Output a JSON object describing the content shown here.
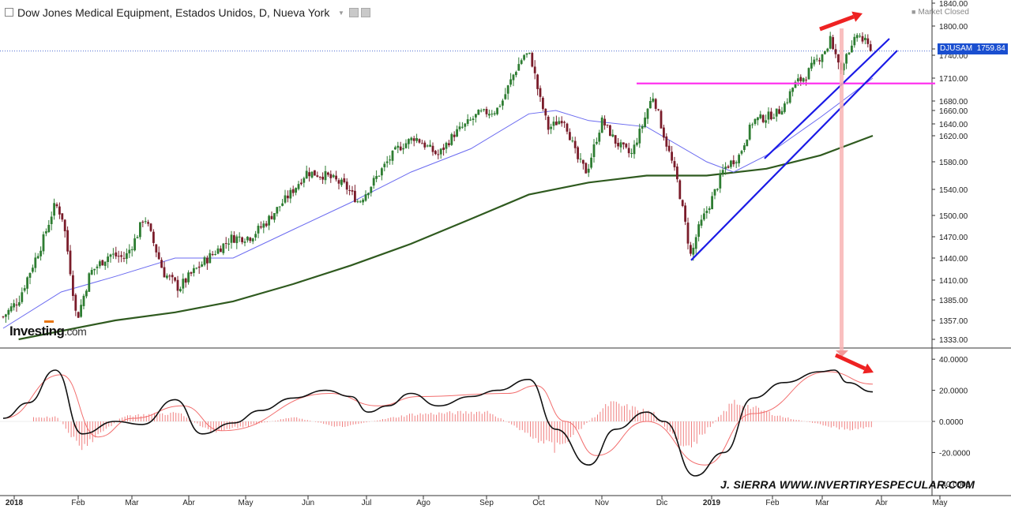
{
  "header": {
    "title": "Dow Jones Medical Equipment, Estados Unidos, D, Nueva York",
    "market_status": "Market Closed"
  },
  "price_tag": {
    "symbol": "DJUSAM",
    "value": "1759.84"
  },
  "logo": {
    "brand": "Investing",
    "suffix": ".com"
  },
  "credit": "J. SIERRA   WWW.INVERTIRYESPECULAR.COM",
  "colors": {
    "up_candle": "#2e7d32",
    "down_candle": "#7a1c2a",
    "sma50": "#6b6bf0",
    "sma200": "#2f5a1f",
    "macd": "#111111",
    "signal": "#f26d6d",
    "histogram": "#f08080",
    "trendline": "#1a1ae6",
    "resistance": "#ff33ee",
    "arrow": "#ee2222"
  },
  "chart_data": [
    {
      "type": "candlestick",
      "title": "Dow Jones Medical Equipment, Estados Unidos, D, Nueva York",
      "x_tick_labels": [
        "2018",
        "Feb",
        "Mar",
        "Abr",
        "May",
        "Jun",
        "Jul",
        "Ago",
        "Sep",
        "Oct",
        "Nov",
        "Dic",
        "2019",
        "Feb",
        "Mar",
        "Abr",
        "May"
      ],
      "y_tick_labels": [
        "1840.00",
        "1800.00",
        "1770.00",
        "1740.00",
        "1710.00",
        "1680.00",
        "1660.00",
        "1640.00",
        "1620.00",
        "1580.00",
        "1540.00",
        "1500.00",
        "1470.00",
        "1440.00",
        "1410.00",
        "1385.00",
        "1357.00",
        "1333.00"
      ],
      "y_tick_values": [
        1840,
        1800,
        1770,
        1740,
        1710,
        1680,
        1660,
        1640,
        1620,
        1580,
        1540,
        1500,
        1470,
        1440,
        1410,
        1385,
        1357,
        1333
      ],
      "last_price": 1759.84,
      "close_series": [
        {
          "date": "2018-01-02",
          "value": 1362
        },
        {
          "date": "2018-01-10",
          "value": 1385
        },
        {
          "date": "2018-01-22",
          "value": 1460
        },
        {
          "date": "2018-01-29",
          "value": 1518
        },
        {
          "date": "2018-02-02",
          "value": 1495
        },
        {
          "date": "2018-02-08",
          "value": 1380
        },
        {
          "date": "2018-02-09",
          "value": 1357
        },
        {
          "date": "2018-02-16",
          "value": 1420
        },
        {
          "date": "2018-02-26",
          "value": 1445
        },
        {
          "date": "2018-03-06",
          "value": 1440
        },
        {
          "date": "2018-03-12",
          "value": 1470
        },
        {
          "date": "2018-03-16",
          "value": 1500
        },
        {
          "date": "2018-03-26",
          "value": 1420
        },
        {
          "date": "2018-04-03",
          "value": 1400
        },
        {
          "date": "2018-04-10",
          "value": 1420
        },
        {
          "date": "2018-04-20",
          "value": 1445
        },
        {
          "date": "2018-04-30",
          "value": 1468
        },
        {
          "date": "2018-05-10",
          "value": 1470
        },
        {
          "date": "2018-05-18",
          "value": 1490
        },
        {
          "date": "2018-05-31",
          "value": 1535
        },
        {
          "date": "2018-06-08",
          "value": 1565
        },
        {
          "date": "2018-06-18",
          "value": 1560
        },
        {
          "date": "2018-06-28",
          "value": 1545
        },
        {
          "date": "2018-07-05",
          "value": 1520
        },
        {
          "date": "2018-07-16",
          "value": 1565
        },
        {
          "date": "2018-07-25",
          "value": 1600
        },
        {
          "date": "2018-08-03",
          "value": 1618
        },
        {
          "date": "2018-08-15",
          "value": 1590
        },
        {
          "date": "2018-08-24",
          "value": 1625
        },
        {
          "date": "2018-09-05",
          "value": 1655
        },
        {
          "date": "2018-09-14",
          "value": 1660
        },
        {
          "date": "2018-09-24",
          "value": 1720
        },
        {
          "date": "2018-10-01",
          "value": 1752
        },
        {
          "date": "2018-10-04",
          "value": 1715
        },
        {
          "date": "2018-10-11",
          "value": 1632
        },
        {
          "date": "2018-10-19",
          "value": 1650
        },
        {
          "date": "2018-10-26",
          "value": 1585
        },
        {
          "date": "2018-10-31",
          "value": 1565
        },
        {
          "date": "2018-11-08",
          "value": 1645
        },
        {
          "date": "2018-11-15",
          "value": 1610
        },
        {
          "date": "2018-11-23",
          "value": 1590
        },
        {
          "date": "2018-11-30",
          "value": 1648
        },
        {
          "date": "2018-12-04",
          "value": 1690
        },
        {
          "date": "2018-12-10",
          "value": 1620
        },
        {
          "date": "2018-12-17",
          "value": 1550
        },
        {
          "date": "2018-12-24",
          "value": 1440
        },
        {
          "date": "2018-12-27",
          "value": 1475
        },
        {
          "date": "2019-01-03",
          "value": 1520
        },
        {
          "date": "2019-01-10",
          "value": 1570
        },
        {
          "date": "2019-01-18",
          "value": 1590
        },
        {
          "date": "2019-01-25",
          "value": 1645
        },
        {
          "date": "2019-02-01",
          "value": 1650
        },
        {
          "date": "2019-02-08",
          "value": 1660
        },
        {
          "date": "2019-02-15",
          "value": 1700
        },
        {
          "date": "2019-02-22",
          "value": 1715
        },
        {
          "date": "2019-03-01",
          "value": 1740
        },
        {
          "date": "2019-03-06",
          "value": 1785
        },
        {
          "date": "2019-03-11",
          "value": 1715
        },
        {
          "date": "2019-03-14",
          "value": 1745
        },
        {
          "date": "2019-03-20",
          "value": 1790
        },
        {
          "date": "2019-03-25",
          "value": 1775
        },
        {
          "date": "2019-03-28",
          "value": 1760
        }
      ],
      "sma50": [
        {
          "date": "2018-01-02",
          "value": 1347
        },
        {
          "date": "2018-02-01",
          "value": 1395
        },
        {
          "date": "2018-03-01",
          "value": 1415
        },
        {
          "date": "2018-04-01",
          "value": 1440
        },
        {
          "date": "2018-05-01",
          "value": 1440
        },
        {
          "date": "2018-06-01",
          "value": 1480
        },
        {
          "date": "2018-07-01",
          "value": 1520
        },
        {
          "date": "2018-08-01",
          "value": 1565
        },
        {
          "date": "2018-09-01",
          "value": 1600
        },
        {
          "date": "2018-10-01",
          "value": 1655
        },
        {
          "date": "2018-10-15",
          "value": 1660
        },
        {
          "date": "2018-11-01",
          "value": 1645
        },
        {
          "date": "2018-12-01",
          "value": 1635
        },
        {
          "date": "2019-01-01",
          "value": 1580
        },
        {
          "date": "2019-01-15",
          "value": 1565
        },
        {
          "date": "2019-02-01",
          "value": 1590
        },
        {
          "date": "2019-03-01",
          "value": 1650
        },
        {
          "date": "2019-03-28",
          "value": 1710
        }
      ],
      "sma200": [
        {
          "date": "2018-01-10",
          "value": 1333
        },
        {
          "date": "2018-03-01",
          "value": 1357
        },
        {
          "date": "2018-04-01",
          "value": 1368
        },
        {
          "date": "2018-05-01",
          "value": 1383
        },
        {
          "date": "2018-06-01",
          "value": 1405
        },
        {
          "date": "2018-07-01",
          "value": 1430
        },
        {
          "date": "2018-08-01",
          "value": 1460
        },
        {
          "date": "2018-09-01",
          "value": 1495
        },
        {
          "date": "2018-10-01",
          "value": 1532
        },
        {
          "date": "2018-11-01",
          "value": 1550
        },
        {
          "date": "2018-12-01",
          "value": 1560
        },
        {
          "date": "2019-01-01",
          "value": 1560
        },
        {
          "date": "2019-02-01",
          "value": 1570
        },
        {
          "date": "2019-03-01",
          "value": 1590
        },
        {
          "date": "2019-03-28",
          "value": 1620
        }
      ],
      "drawings": {
        "resistance_level": 1703,
        "upper_trendline": [
          {
            "date": "2019-01-31",
            "value": 1585
          },
          {
            "date": "2019-03-31",
            "value": 1770
          }
        ],
        "lower_trendline": [
          {
            "date": "2018-12-24",
            "value": 1437
          },
          {
            "date": "2019-04-01",
            "value": 1755
          }
        ],
        "divergence_arrow_price": [
          {
            "date": "2019-03-01",
            "value": 1800
          },
          {
            "date": "2019-03-25",
            "value": 1833
          }
        ]
      }
    },
    {
      "type": "line",
      "y_tick_labels": [
        "40.0000",
        "20.0000",
        "0.0000",
        "-20.0000",
        "-40.0000"
      ],
      "y_tick_values": [
        40,
        20,
        0,
        -20,
        -40
      ],
      "macd": [
        {
          "date": "2018-01-02",
          "value": 2
        },
        {
          "date": "2018-01-15",
          "value": 12
        },
        {
          "date": "2018-01-29",
          "value": 33
        },
        {
          "date": "2018-02-12",
          "value": -8
        },
        {
          "date": "2018-03-01",
          "value": 0
        },
        {
          "date": "2018-03-15",
          "value": -2
        },
        {
          "date": "2018-04-01",
          "value": 14
        },
        {
          "date": "2018-04-15",
          "value": -8
        },
        {
          "date": "2018-05-01",
          "value": -1
        },
        {
          "date": "2018-05-15",
          "value": 7
        },
        {
          "date": "2018-06-01",
          "value": 15
        },
        {
          "date": "2018-06-18",
          "value": 20
        },
        {
          "date": "2018-07-01",
          "value": 16
        },
        {
          "date": "2018-07-10",
          "value": 6
        },
        {
          "date": "2018-07-20",
          "value": 10
        },
        {
          "date": "2018-08-01",
          "value": 18
        },
        {
          "date": "2018-08-15",
          "value": 10
        },
        {
          "date": "2018-09-01",
          "value": 16
        },
        {
          "date": "2018-09-15",
          "value": 20
        },
        {
          "date": "2018-10-01",
          "value": 27
        },
        {
          "date": "2018-10-15",
          "value": -5
        },
        {
          "date": "2018-11-01",
          "value": -28
        },
        {
          "date": "2018-11-15",
          "value": -5
        },
        {
          "date": "2018-12-01",
          "value": 6
        },
        {
          "date": "2018-12-10",
          "value": 0
        },
        {
          "date": "2018-12-26",
          "value": -35
        },
        {
          "date": "2019-01-10",
          "value": -20
        },
        {
          "date": "2019-01-25",
          "value": 15
        },
        {
          "date": "2019-02-10",
          "value": 25
        },
        {
          "date": "2019-03-01",
          "value": 32
        },
        {
          "date": "2019-03-08",
          "value": 33
        },
        {
          "date": "2019-03-15",
          "value": 25
        },
        {
          "date": "2019-03-28",
          "value": 19
        }
      ],
      "signal": [
        {
          "date": "2018-01-02",
          "value": 2
        },
        {
          "date": "2018-02-01",
          "value": 30
        },
        {
          "date": "2018-02-20",
          "value": -10
        },
        {
          "date": "2018-03-10",
          "value": 2
        },
        {
          "date": "2018-04-05",
          "value": 10
        },
        {
          "date": "2018-04-25",
          "value": -6
        },
        {
          "date": "2018-06-20",
          "value": 18
        },
        {
          "date": "2018-07-15",
          "value": 10
        },
        {
          "date": "2018-08-05",
          "value": 16
        },
        {
          "date": "2018-09-20",
          "value": 18
        },
        {
          "date": "2018-10-05",
          "value": 23
        },
        {
          "date": "2018-10-20",
          "value": 0
        },
        {
          "date": "2018-11-05",
          "value": -22
        },
        {
          "date": "2018-12-01",
          "value": 0
        },
        {
          "date": "2018-12-31",
          "value": -28
        },
        {
          "date": "2019-01-25",
          "value": 5
        },
        {
          "date": "2019-03-05",
          "value": 32
        },
        {
          "date": "2019-03-28",
          "value": 24
        }
      ],
      "histogram": [
        {
          "date": "2018-01-30",
          "value": 3
        },
        {
          "date": "2018-02-12",
          "value": -20
        },
        {
          "date": "2018-03-05",
          "value": 4
        },
        {
          "date": "2018-04-03",
          "value": 6
        },
        {
          "date": "2018-04-20",
          "value": -8
        },
        {
          "date": "2018-06-01",
          "value": 3
        },
        {
          "date": "2018-06-25",
          "value": -4
        },
        {
          "date": "2018-08-01",
          "value": 5
        },
        {
          "date": "2018-09-10",
          "value": 7
        },
        {
          "date": "2018-10-15",
          "value": -20
        },
        {
          "date": "2018-11-12",
          "value": 13
        },
        {
          "date": "2018-12-05",
          "value": 6
        },
        {
          "date": "2018-12-21",
          "value": -22
        },
        {
          "date": "2019-01-15",
          "value": 14
        },
        {
          "date": "2019-02-10",
          "value": 3
        },
        {
          "date": "2019-03-15",
          "value": -6
        },
        {
          "date": "2019-03-28",
          "value": -4
        }
      ],
      "drawings": {
        "divergence_arrow_macd": [
          {
            "date": "2019-03-05",
            "value": 35
          },
          {
            "date": "2019-03-28",
            "value": 26
          }
        ]
      }
    }
  ]
}
